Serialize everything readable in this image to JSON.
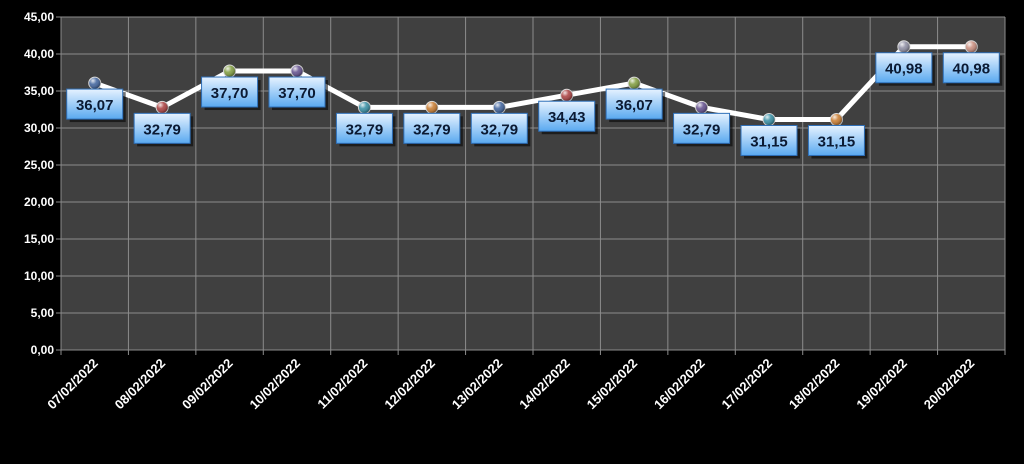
{
  "chart_data": {
    "type": "line",
    "title": "",
    "xlabel": "",
    "ylabel": "",
    "ylim": [
      0,
      45
    ],
    "y_tick_step": 5,
    "y_tick_labels": [
      "0,00",
      "5,00",
      "10,00",
      "15,00",
      "20,00",
      "25,00",
      "30,00",
      "35,00",
      "40,00",
      "45,00"
    ],
    "grid": true,
    "legend": "none",
    "categories": [
      "07/02/2022",
      "08/02/2022",
      "09/02/2022",
      "10/02/2022",
      "11/02/2022",
      "12/02/2022",
      "13/02/2022",
      "14/02/2022",
      "15/02/2022",
      "16/02/2022",
      "17/02/2022",
      "18/02/2022",
      "19/02/2022",
      "20/02/2022"
    ],
    "series": [
      {
        "values": [
          36.07,
          32.79,
          37.7,
          37.7,
          32.79,
          32.79,
          32.79,
          34.43,
          36.07,
          32.79,
          31.15,
          31.15,
          40.98,
          40.98
        ],
        "data_labels": [
          "36,07",
          "32,79",
          "37,70",
          "37,70",
          "32,79",
          "32,79",
          "32,79",
          "34,43",
          "36,07",
          "32,79",
          "31,15",
          "31,15",
          "40,98",
          "40,98"
        ]
      }
    ],
    "marker_colors": [
      "#3a5f9a",
      "#a83a3a",
      "#7d9a3a",
      "#5e4a8a",
      "#2f8aa0",
      "#c7782a",
      "#3a5f9a",
      "#a83a3a",
      "#7d9a3a",
      "#5e4a8a",
      "#2f8aa0",
      "#c7782a",
      "#8a8aa0",
      "#c78a7a"
    ],
    "colors": {
      "background": "#000000",
      "plot_area": "#404040",
      "grid": "#8c8c8c",
      "line": "#ffffff",
      "tick_text": "#ffffff",
      "label_fill_top": "#e6f2ff",
      "label_fill_bottom": "#5aa9f0",
      "label_border": "#2e6fb8",
      "label_text": "#0b1a33"
    }
  }
}
